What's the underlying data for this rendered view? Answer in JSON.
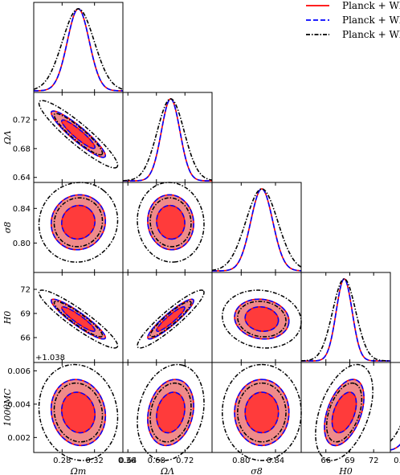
{
  "chart_data": {
    "type": "triangle",
    "parameters": [
      {
        "id": "om",
        "label": "Ωm",
        "lo": 0.245,
        "hi": 0.355,
        "ticks": [
          0.28,
          0.32,
          0.36
        ],
        "tick_labels": [
          "0.28",
          "0.32",
          "0.36"
        ]
      },
      {
        "id": "ol",
        "label": "ΩΛ",
        "lo": 0.633,
        "hi": 0.758,
        "ticks": [
          0.64,
          0.68,
          0.72
        ],
        "tick_labels": [
          "0.64",
          "0.68",
          "0.72"
        ]
      },
      {
        "id": "s8",
        "label": "σ8",
        "lo": 0.766,
        "hi": 0.87,
        "ticks": [
          0.8,
          0.84
        ],
        "tick_labels": [
          "0.80",
          "0.84"
        ]
      },
      {
        "id": "h0",
        "label": "H0",
        "lo": 62.9,
        "hi": 74.1,
        "ticks": [
          66,
          69,
          72
        ],
        "tick_labels": [
          "66",
          "69",
          "72"
        ]
      },
      {
        "id": "th",
        "label": "100θMC",
        "lo": 0.0011,
        "hi": 0.0065,
        "ticks": [
          0.002,
          0.004,
          0.006
        ],
        "tick_labels": [
          "0.002",
          "0.004",
          "0.006"
        ],
        "offset": "+1.038"
      }
    ],
    "series": [
      {
        "name": "Planck + WP",
        "color": "#ff0000",
        "dash": "solid",
        "width_scale": 1.0
      },
      {
        "name": "Planck + WP",
        "color": "#0000ff",
        "dash": "dashed",
        "width_scale": 1.0
      },
      {
        "name": "Planck + WP",
        "color": "#000000",
        "dash": "dashdot",
        "width_scale": 1.45
      }
    ],
    "means": {
      "om": 0.3,
      "ol": 0.7,
      "s8": 0.824,
      "h0": 68.3,
      "th": 0.0035
    },
    "sigmas": {
      "om": 0.0135,
      "ol": 0.013,
      "s8": 0.0128,
      "h0": 1.0,
      "th": 0.0008
    },
    "correlations": {
      "om-ol": -0.92,
      "om-s8": 0.05,
      "om-h0": -0.92,
      "om-th": -0.1,
      "ol-s8": -0.05,
      "ol-h0": 0.92,
      "ol-th": 0.2,
      "s8-h0": -0.1,
      "s8-th": 0.0,
      "h0-th": 0.45
    },
    "fill_colors": {
      "inner": "#ff3b3b",
      "outer": "#f08a8a"
    },
    "legend_position": "top-right",
    "grid": false
  }
}
